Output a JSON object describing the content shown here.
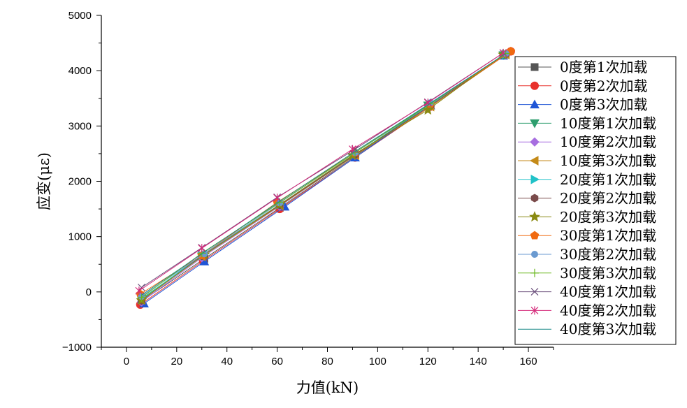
{
  "chart_data": {
    "type": "line",
    "xlabel": "力值(kN)",
    "ylabel": "应变(με)",
    "xlim": [
      -10,
      170
    ],
    "ylim": [
      -1000,
      5000
    ],
    "xticks": [
      0,
      20,
      40,
      60,
      80,
      100,
      120,
      140,
      160
    ],
    "yticks": [
      -1000,
      0,
      1000,
      2000,
      3000,
      4000,
      5000
    ],
    "legend_position": "right",
    "series": [
      {
        "name": "0度第1次加载",
        "color": "#555555",
        "marker": "square",
        "x": [
          6,
          31,
          61,
          91,
          121,
          150
        ],
        "y": [
          -170,
          600,
          1520,
          2450,
          3370,
          4280
        ]
      },
      {
        "name": "0度第2次加载",
        "color": "#e8322c",
        "marker": "circle",
        "x": [
          5.5,
          30.5,
          61,
          91,
          121,
          153
        ],
        "y": [
          -230,
          560,
          1500,
          2430,
          3350,
          4350
        ]
      },
      {
        "name": "0度第3次加载",
        "color": "#1f55d6",
        "marker": "triangle-up",
        "x": [
          7,
          31,
          63,
          91,
          121,
          150
        ],
        "y": [
          -210,
          550,
          1540,
          2430,
          3370,
          4270
        ]
      },
      {
        "name": "10度第1次加载",
        "color": "#2e9e6e",
        "marker": "triangle-down",
        "x": [
          6,
          30,
          61,
          91,
          120,
          150
        ],
        "y": [
          -120,
          640,
          1560,
          2480,
          3370,
          4280
        ]
      },
      {
        "name": "10度第2次加载",
        "color": "#a76ee0",
        "marker": "diamond",
        "x": [
          6,
          30,
          61,
          91,
          121,
          151
        ],
        "y": [
          -180,
          620,
          1550,
          2470,
          3360,
          4290
        ]
      },
      {
        "name": "10度第3次加载",
        "color": "#c48a18",
        "marker": "triangle-left",
        "x": [
          6,
          30,
          61,
          91,
          121,
          151
        ],
        "y": [
          -140,
          640,
          1560,
          2470,
          3350,
          4290
        ]
      },
      {
        "name": "20度第1次加载",
        "color": "#21c2c8",
        "marker": "triangle-right",
        "x": [
          6,
          30,
          61,
          91,
          121,
          151
        ],
        "y": [
          -130,
          660,
          1580,
          2490,
          3380,
          4300
        ]
      },
      {
        "name": "20度第2次加载",
        "color": "#7a4b4b",
        "marker": "hexagon",
        "x": [
          6,
          30,
          61,
          91,
          121,
          151
        ],
        "y": [
          -160,
          650,
          1570,
          2480,
          3370,
          4300
        ]
      },
      {
        "name": "20度第3次加载",
        "color": "#8a8a12",
        "marker": "star",
        "x": [
          6,
          31,
          61,
          90,
          120,
          150
        ],
        "y": [
          -150,
          670,
          1580,
          2470,
          3290,
          4290
        ]
      },
      {
        "name": "30度第1次加载",
        "color": "#f06a10",
        "marker": "pentagon",
        "x": [
          5.5,
          30,
          60,
          91,
          121,
          153
        ],
        "y": [
          -40,
          660,
          1620,
          2520,
          3400,
          4350
        ]
      },
      {
        "name": "30度第2次加载",
        "color": "#6a9ad0",
        "marker": "small-circle",
        "x": [
          6,
          31,
          61,
          91,
          121,
          151
        ],
        "y": [
          -80,
          690,
          1610,
          2520,
          3420,
          4310
        ]
      },
      {
        "name": "30度第3次加载",
        "color": "#6ab820",
        "marker": "plus",
        "x": [
          6,
          30,
          61,
          91,
          121,
          151
        ],
        "y": [
          -100,
          700,
          1620,
          2520,
          3400,
          4310
        ]
      },
      {
        "name": "40度第1次加载",
        "color": "#6b4f7c",
        "marker": "x",
        "x": [
          6,
          30,
          60,
          91,
          120,
          150
        ],
        "y": [
          80,
          800,
          1710,
          2580,
          3430,
          4320
        ]
      },
      {
        "name": "40度第2次加载",
        "color": "#d42a7a",
        "marker": "asterisk",
        "x": [
          5,
          30,
          60,
          90,
          120,
          150
        ],
        "y": [
          20,
          790,
          1700,
          2580,
          3420,
          4320
        ]
      },
      {
        "name": "40度第3次加载",
        "color": "#1a8a88",
        "marker": "none",
        "x": [
          6,
          31,
          61,
          91,
          121,
          151
        ],
        "y": [
          -60,
          720,
          1640,
          2540,
          3410,
          4310
        ]
      }
    ]
  }
}
